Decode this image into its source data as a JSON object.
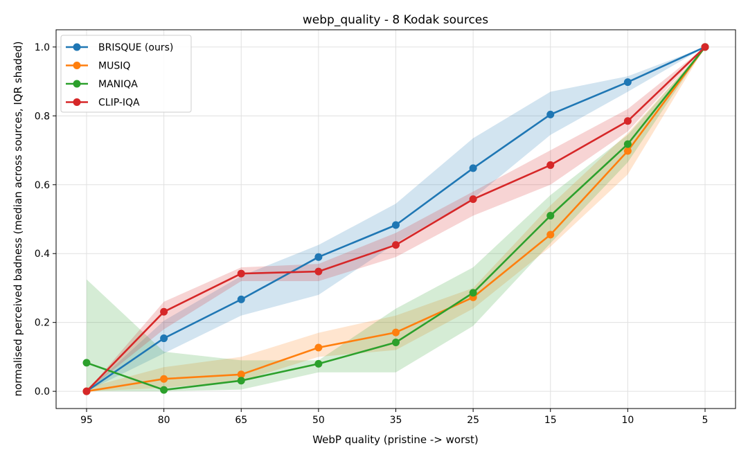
{
  "chart_data": {
    "type": "line",
    "title": "webp_quality - 8 Kodak sources",
    "xlabel": "WebP quality  (pristine -> worst)",
    "ylabel": "normalised perceived badness  (median across sources, IQR shaded)",
    "categories": [
      "95",
      "80",
      "65",
      "50",
      "35",
      "25",
      "15",
      "10",
      "5"
    ],
    "ylim": [
      -0.05,
      1.05
    ],
    "yticks": [
      "0.0",
      "0.2",
      "0.4",
      "0.6",
      "0.8",
      "1.0"
    ],
    "grid": true,
    "legend_position": "top-left",
    "series": [
      {
        "name": "BRISQUE (ours)",
        "color": "#1f77b4",
        "values": [
          0.0,
          0.154,
          0.267,
          0.39,
          0.483,
          0.648,
          0.804,
          0.898,
          1.0
        ],
        "iqr_low": [
          0.0,
          0.11,
          0.22,
          0.28,
          0.43,
          0.56,
          0.745,
          0.87,
          1.0
        ],
        "iqr_high": [
          0.0,
          0.205,
          0.335,
          0.425,
          0.545,
          0.735,
          0.87,
          0.915,
          1.0
        ]
      },
      {
        "name": "MUSIQ",
        "color": "#ff7f0e",
        "values": [
          0.0,
          0.036,
          0.049,
          0.127,
          0.171,
          0.273,
          0.455,
          0.698,
          1.0
        ],
        "iqr_low": [
          0.0,
          0.01,
          0.03,
          0.1,
          0.12,
          0.24,
          0.42,
          0.63,
          1.0
        ],
        "iqr_high": [
          0.01,
          0.07,
          0.1,
          0.17,
          0.22,
          0.3,
          0.54,
          0.75,
          1.0
        ]
      },
      {
        "name": "MANIQA",
        "color": "#2ca02c",
        "values": [
          0.083,
          0.004,
          0.031,
          0.08,
          0.142,
          0.286,
          0.51,
          0.718,
          1.0
        ],
        "iqr_low": [
          0.0,
          0.0,
          0.005,
          0.055,
          0.055,
          0.19,
          0.43,
          0.665,
          1.0
        ],
        "iqr_high": [
          0.325,
          0.115,
          0.09,
          0.09,
          0.24,
          0.36,
          0.57,
          0.745,
          1.0
        ]
      },
      {
        "name": "CLIP-IQA",
        "color": "#d62728",
        "values": [
          0.0,
          0.231,
          0.342,
          0.348,
          0.425,
          0.558,
          0.657,
          0.785,
          1.0
        ],
        "iqr_low": [
          0.0,
          0.18,
          0.32,
          0.32,
          0.39,
          0.51,
          0.6,
          0.755,
          1.0
        ],
        "iqr_high": [
          0.0,
          0.26,
          0.36,
          0.37,
          0.46,
          0.58,
          0.7,
          0.82,
          1.0
        ]
      }
    ]
  }
}
